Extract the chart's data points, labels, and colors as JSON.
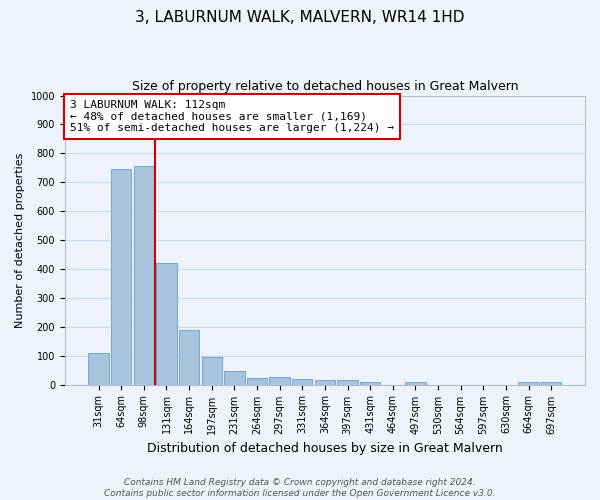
{
  "title": "3, LABURNUM WALK, MALVERN, WR14 1HD",
  "subtitle": "Size of property relative to detached houses in Great Malvern",
  "xlabel": "Distribution of detached houses by size in Great Malvern",
  "ylabel": "Number of detached properties",
  "categories": [
    "31sqm",
    "64sqm",
    "98sqm",
    "131sqm",
    "164sqm",
    "197sqm",
    "231sqm",
    "264sqm",
    "297sqm",
    "331sqm",
    "364sqm",
    "397sqm",
    "431sqm",
    "464sqm",
    "497sqm",
    "530sqm",
    "564sqm",
    "597sqm",
    "630sqm",
    "664sqm",
    "697sqm"
  ],
  "values": [
    110,
    745,
    755,
    420,
    188,
    97,
    47,
    24,
    27,
    20,
    15,
    15,
    8,
    0,
    8,
    0,
    0,
    0,
    0,
    8,
    8
  ],
  "bar_color": "#aac4e0",
  "bar_edge_color": "#6fa8d0",
  "background_color": "#eef2fa",
  "ylim": [
    0,
    1000
  ],
  "yticks": [
    0,
    100,
    200,
    300,
    400,
    500,
    600,
    700,
    800,
    900,
    1000
  ],
  "vline_color": "#cc0000",
  "annotation_title": "3 LABURNUM WALK: 112sqm",
  "annotation_line2": "← 48% of detached houses are smaller (1,169)",
  "annotation_line3": "51% of semi-detached houses are larger (1,224) →",
  "annotation_box_color": "#ffffff",
  "annotation_box_edge_color": "#cc0000",
  "footer_line1": "Contains HM Land Registry data © Crown copyright and database right 2024.",
  "footer_line2": "Contains public sector information licensed under the Open Government Licence v3.0.",
  "grid_color": "#c8d8ee",
  "title_fontsize": 11,
  "subtitle_fontsize": 9,
  "xlabel_fontsize": 9,
  "ylabel_fontsize": 8,
  "tick_fontsize": 7,
  "annotation_fontsize": 8,
  "footer_fontsize": 6.5
}
